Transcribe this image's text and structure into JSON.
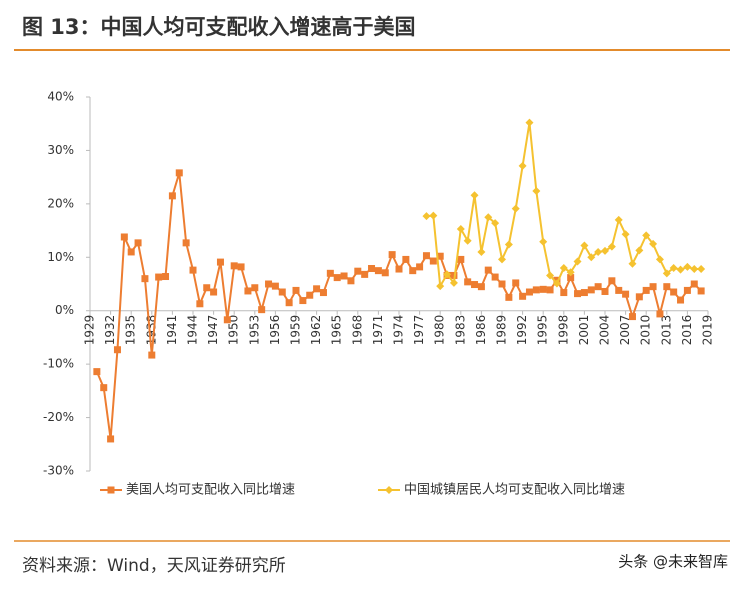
{
  "chart_data": {
    "type": "line",
    "title": "图 13：中国人均可支配收入增速高于美国",
    "source": "资料来源：Wind，天风证券研究所",
    "watermark": "头条 @未来智库",
    "xlim": [
      1929,
      2019
    ],
    "xticks": [
      1929,
      1932,
      1935,
      1938,
      1941,
      1944,
      1947,
      1950,
      1953,
      1956,
      1959,
      1962,
      1965,
      1968,
      1971,
      1974,
      1977,
      1980,
      1983,
      1986,
      1989,
      1992,
      1995,
      1998,
      2001,
      2004,
      2007,
      2010,
      2013,
      2016,
      2019
    ],
    "ylim": [
      -30,
      40
    ],
    "yticks": [
      {
        "value": -30,
        "label": "-30%"
      },
      {
        "value": -20,
        "label": "-20%"
      },
      {
        "value": -10,
        "label": "-10%"
      },
      {
        "value": 0,
        "label": "0%"
      },
      {
        "value": 10,
        "label": "10%"
      },
      {
        "value": 20,
        "label": "20%"
      },
      {
        "value": 30,
        "label": "30%"
      },
      {
        "value": 40,
        "label": "40%"
      }
    ],
    "series": [
      {
        "name": "美国人均可支配收入同比增速",
        "color": "#ed7d31",
        "marker": "square",
        "x": [
          1930,
          1931,
          1932,
          1933,
          1934,
          1935,
          1936,
          1937,
          1938,
          1939,
          1940,
          1941,
          1942,
          1943,
          1944,
          1945,
          1946,
          1947,
          1948,
          1949,
          1950,
          1951,
          1952,
          1953,
          1954,
          1955,
          1956,
          1957,
          1958,
          1959,
          1960,
          1961,
          1962,
          1963,
          1964,
          1965,
          1966,
          1967,
          1968,
          1969,
          1970,
          1971,
          1972,
          1973,
          1974,
          1975,
          1976,
          1977,
          1978,
          1979,
          1980,
          1981,
          1982,
          1983,
          1984,
          1985,
          1986,
          1987,
          1988,
          1989,
          1990,
          1991,
          1992,
          1993,
          1994,
          1995,
          1996,
          1997,
          1998,
          1999,
          2000,
          2001,
          2002,
          2003,
          2004,
          2005,
          2006,
          2007,
          2008,
          2009,
          2010,
          2011,
          2012,
          2013,
          2014,
          2015,
          2016,
          2017,
          2018
        ],
        "values": [
          -11.4,
          -14.4,
          -24,
          -7.3,
          13.8,
          11,
          12.7,
          6,
          -8.3,
          6.3,
          6.4,
          21.5,
          25.8,
          12.7,
          7.6,
          1.3,
          4.3,
          3.5,
          9.1,
          -1.7,
          8.4,
          8.2,
          3.7,
          4.3,
          0.2,
          5,
          4.6,
          3.5,
          1.5,
          3.8,
          1.9,
          2.9,
          4.1,
          3.4,
          7,
          6.2,
          6.5,
          5.6,
          7.4,
          6.8,
          7.9,
          7.5,
          7.1,
          10.5,
          7.8,
          9.6,
          7.5,
          8.2,
          10.3,
          9.3,
          10.2,
          6.6,
          6.6,
          9.6,
          5.4,
          4.9,
          4.5,
          7.6,
          6.3,
          5,
          2.5,
          5.2,
          2.7,
          3.5,
          3.9,
          4.0,
          3.9,
          5.7,
          3.4,
          6.2,
          3.2,
          3.4,
          3.9,
          4.5,
          3.6,
          5.6,
          3.8,
          3.1,
          -1.1,
          2.6,
          3.8,
          4.5,
          -0.6,
          4.5,
          3.5,
          2,
          3.8,
          5,
          3.7
        ]
      },
      {
        "name": "中国城镇居民人均可支配收入同比增速",
        "color": "#f5c230",
        "marker": "diamond",
        "x": [
          1978,
          1979,
          1980,
          1981,
          1982,
          1983,
          1984,
          1985,
          1986,
          1987,
          1988,
          1989,
          1990,
          1991,
          1992,
          1993,
          1994,
          1995,
          1996,
          1997,
          1998,
          1999,
          2000,
          2001,
          2002,
          2003,
          2004,
          2005,
          2006,
          2007,
          2008,
          2009,
          2010,
          2011,
          2012,
          2013,
          2014,
          2015,
          2016,
          2017,
          2018
        ],
        "values": [
          17.7,
          17.8,
          4.6,
          6.8,
          5.2,
          15.3,
          13.1,
          21.6,
          11,
          17.5,
          16.4,
          9.6,
          12.4,
          19.1,
          27.1,
          35.2,
          22.4,
          12.9,
          6.6,
          5.1,
          8,
          7.2,
          9.2,
          12.2,
          10,
          11,
          11.2,
          12,
          17,
          14.3,
          8.8,
          11.3,
          14.1,
          12.5,
          9.6,
          7,
          8,
          7.7,
          8.2,
          7.8,
          7.8
        ]
      }
    ]
  }
}
